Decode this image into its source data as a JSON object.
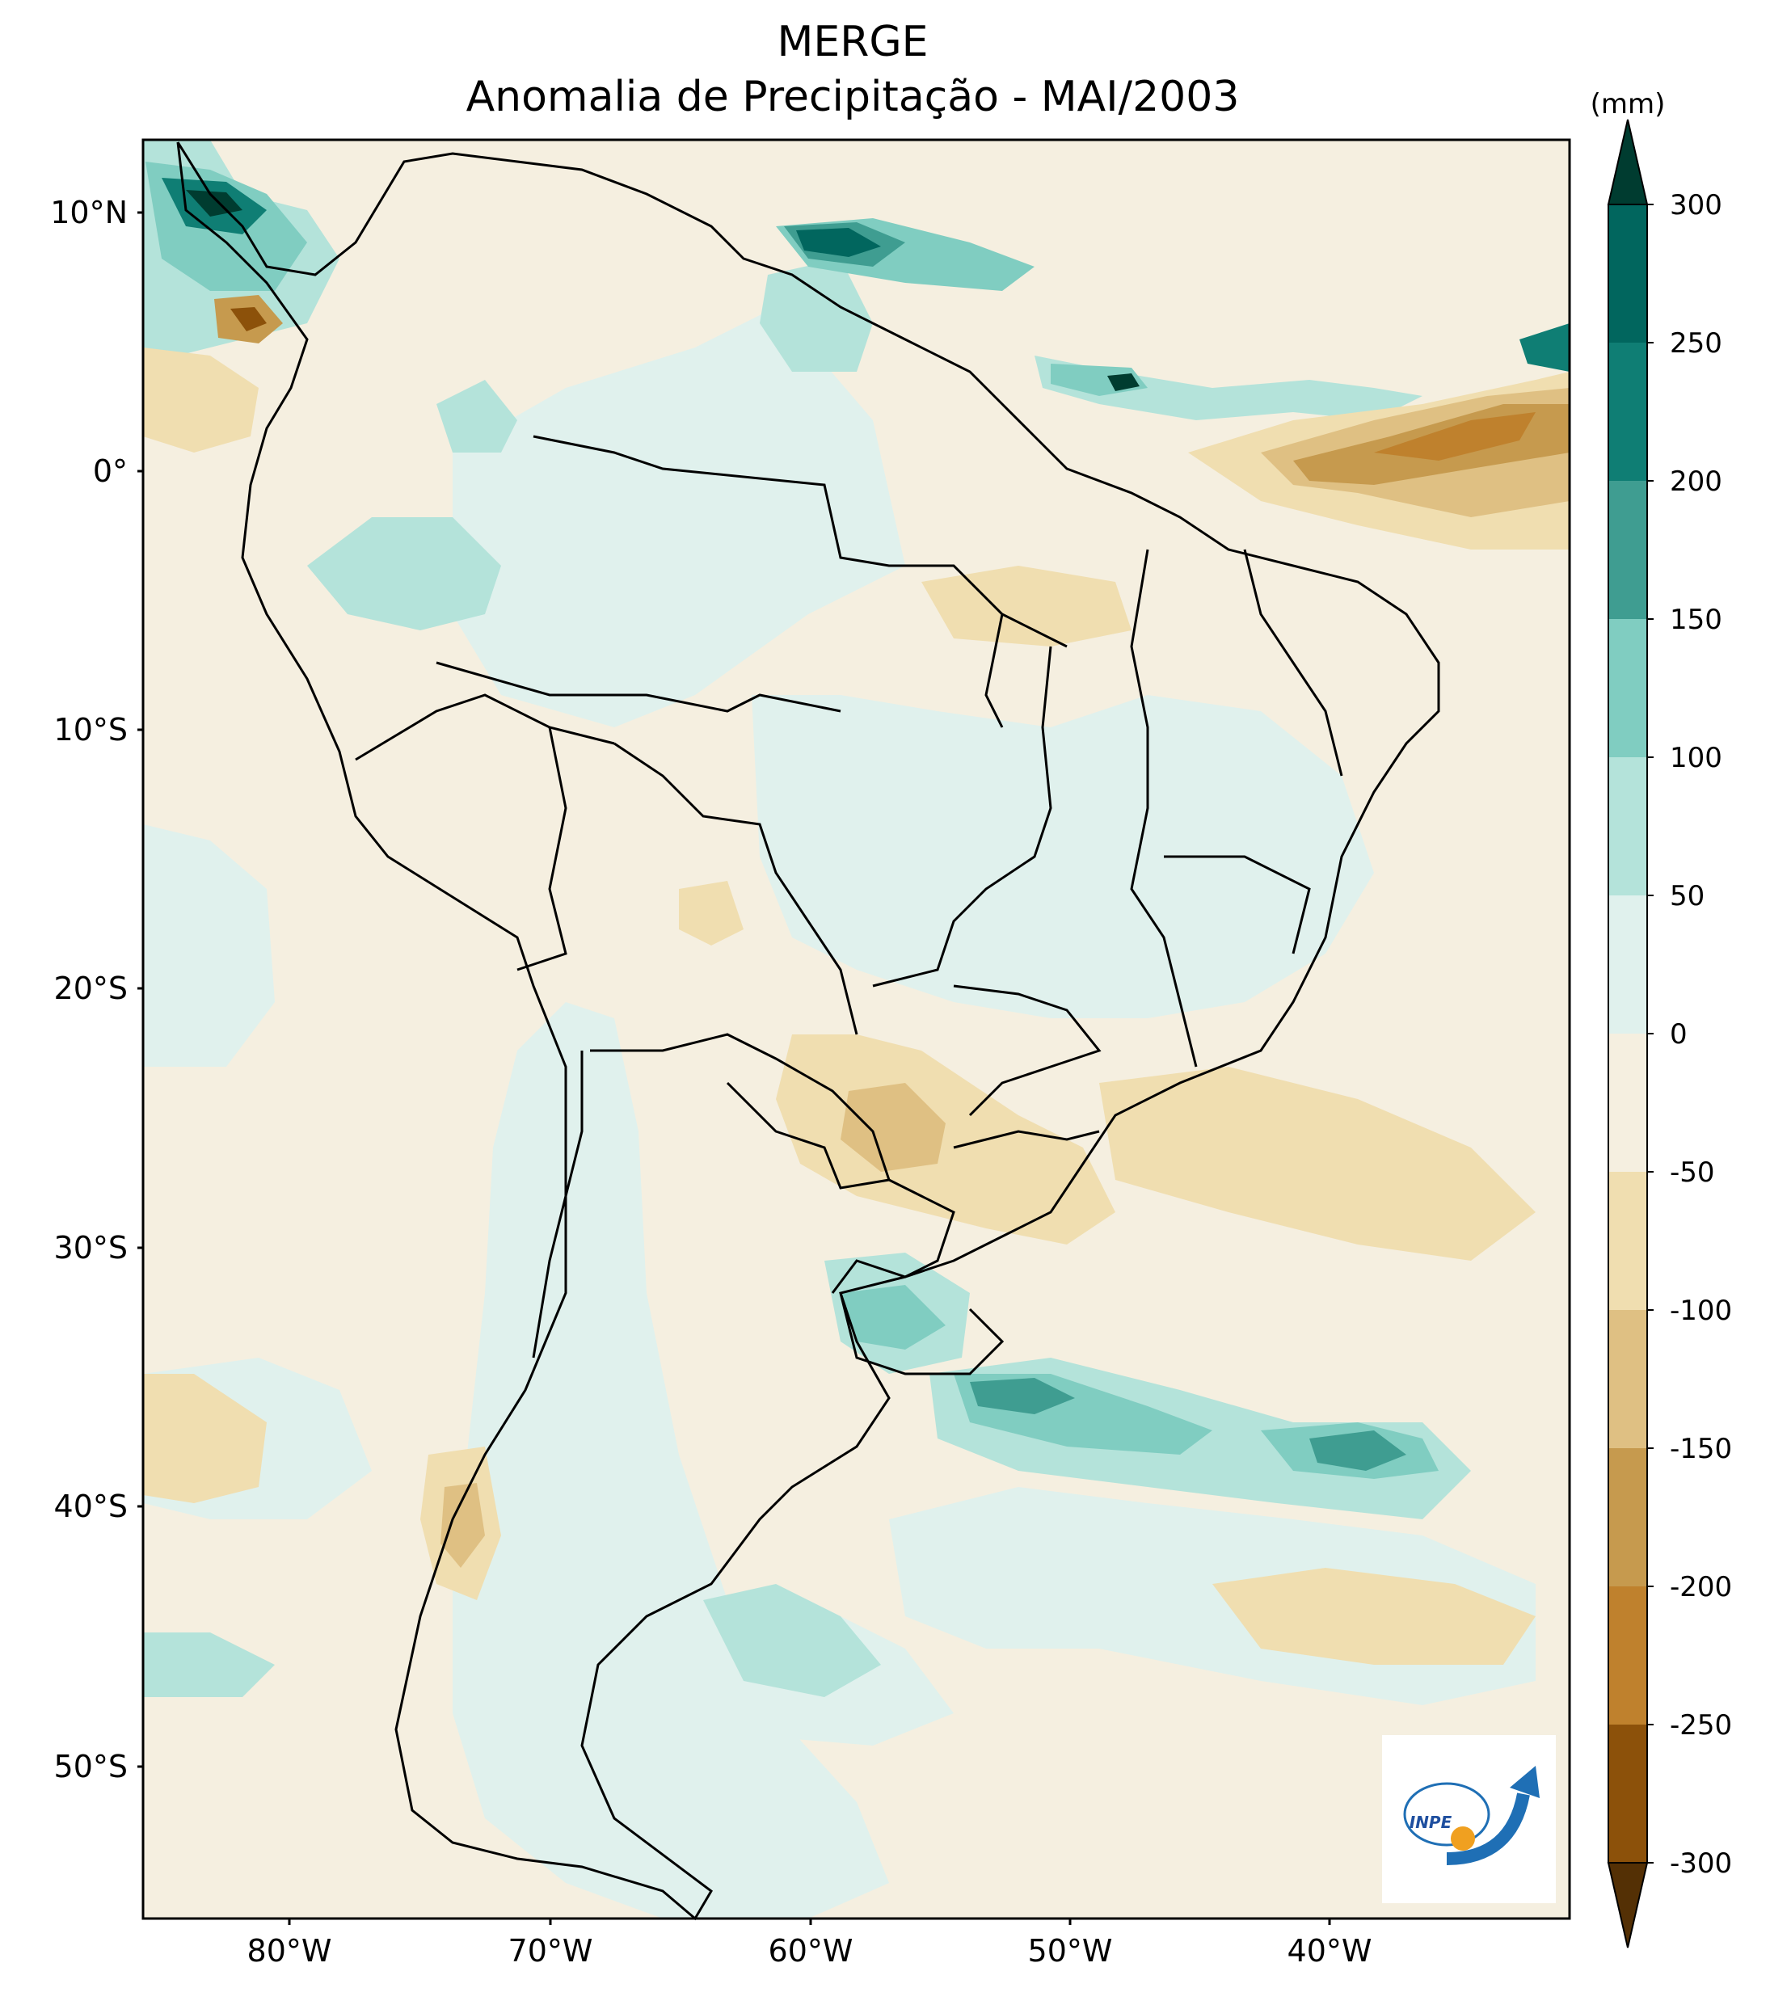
{
  "title": "MERGE",
  "subtitle": "Anomalia de Precipitação - MAI/2003",
  "colorbar": {
    "unit": "(mm)",
    "ticks": [
      "300",
      "250",
      "200",
      "150",
      "100",
      "50",
      "0",
      "-50",
      "-100",
      "-150",
      "-200",
      "-250",
      "-300"
    ],
    "colors": {
      "gt300": "#003c30",
      "250_300": "#01665e",
      "200_250": "#0f7e74",
      "150_200": "#3f9d91",
      "100_150": "#80cdc1",
      "50_100": "#b4e3da",
      "0_50": "#e0f1ed",
      "m50_0": "#f5efe0",
      "m100_m50": "#f0deb0",
      "m150_m100": "#dfc083",
      "m200_m150": "#c69a4e",
      "m250_m200": "#bf812d",
      "m300_m250": "#8c510a",
      "lt_m300": "#543005"
    }
  },
  "axes": {
    "lat_labels": [
      "10°N",
      "0°",
      "10°S",
      "20°S",
      "30°S",
      "40°S",
      "50°S"
    ],
    "lon_labels": [
      "80°W",
      "70°W",
      "60°W",
      "50°W",
      "40°W"
    ]
  },
  "logo": {
    "text": "INPE"
  }
}
